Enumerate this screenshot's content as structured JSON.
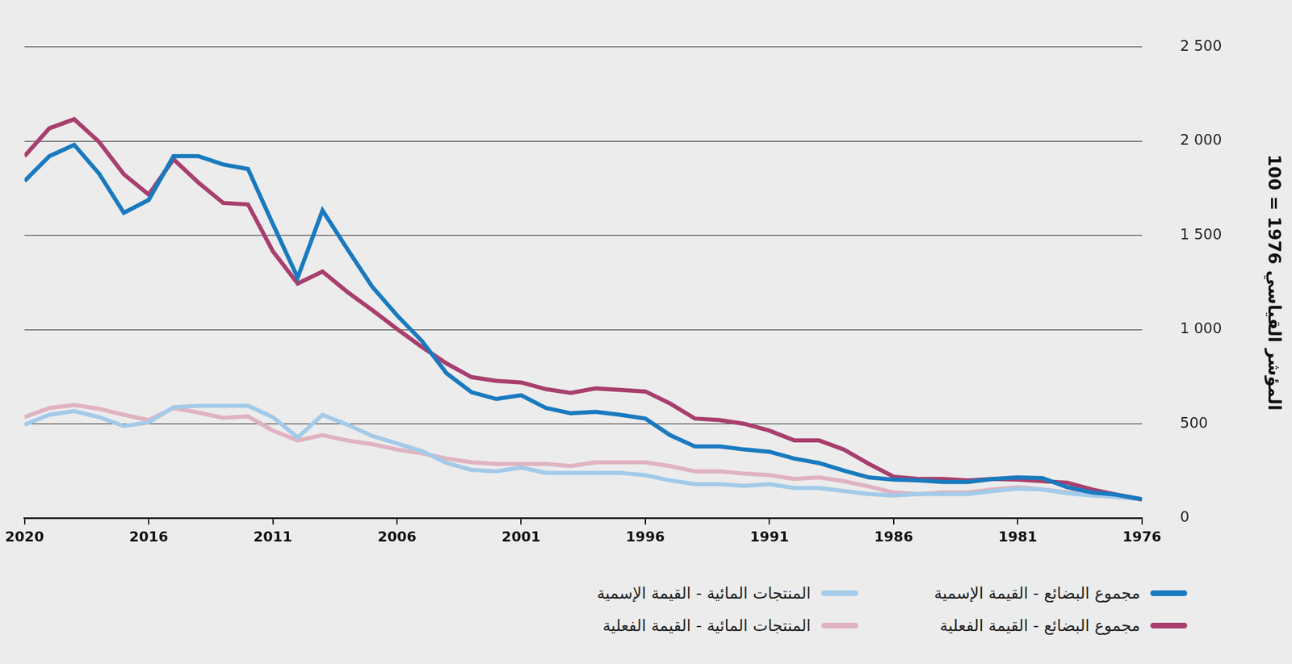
{
  "chart_data": {
    "type": "line",
    "y_label": "المؤشر القياسي 1976 = 100",
    "categories": [
      "2020",
      null,
      null,
      null,
      null,
      "2016",
      null,
      null,
      null,
      null,
      "2011",
      null,
      null,
      null,
      null,
      "2006",
      null,
      null,
      null,
      null,
      "2001",
      null,
      null,
      null,
      null,
      "1996",
      null,
      null,
      null,
      null,
      "1991",
      null,
      null,
      null,
      null,
      "1986",
      null,
      null,
      null,
      null,
      "1981",
      null,
      null,
      null,
      null,
      "1976"
    ],
    "series": [
      {
        "name": "مجموع البضائع - القيمة الإسمية",
        "color": "#1a7abf",
        "values": [
          1788,
          1920,
          1980,
          1828,
          1620,
          1688,
          1920,
          1920,
          1876,
          1852,
          1560,
          1276,
          1632,
          1428,
          1228,
          1076,
          940,
          768,
          668,
          632,
          652,
          584,
          556,
          564,
          548,
          528,
          440,
          380,
          380,
          364,
          352,
          316,
          292,
          252,
          216,
          204,
          200,
          192,
          192,
          208,
          216,
          212,
          164,
          136,
          124,
          100
        ]
      },
      {
        "name": "مجموع البضائع - القيمة الفعلية",
        "color": "#a83f6e",
        "values": [
          1920,
          2068,
          2116,
          1996,
          1824,
          1716,
          1904,
          1780,
          1672,
          1664,
          1416,
          1244,
          1308,
          1200,
          1104,
          1004,
          908,
          820,
          748,
          728,
          720,
          684,
          664,
          688,
          680,
          672,
          608,
          528,
          520,
          500,
          464,
          412,
          412,
          364,
          288,
          220,
          208,
          208,
          200,
          208,
          204,
          196,
          188,
          152,
          124,
          100
        ]
      },
      {
        "name": "المنتجات المائية - القيمة الإسمية",
        "color": "#a3cbe9",
        "values": [
          496,
          548,
          568,
          536,
          488,
          508,
          588,
          596,
          596,
          596,
          536,
          428,
          548,
          496,
          436,
          396,
          356,
          292,
          256,
          248,
          268,
          240,
          240,
          240,
          240,
          228,
          200,
          180,
          180,
          172,
          180,
          160,
          160,
          144,
          128,
          120,
          128,
          128,
          128,
          144,
          156,
          152,
          132,
          120,
          112,
          100
        ]
      },
      {
        "name": "المنتجات المائية - القيمة الفعلية",
        "color": "#e0b3c2",
        "values": [
          536,
          584,
          600,
          580,
          548,
          520,
          584,
          560,
          532,
          540,
          464,
          412,
          440,
          412,
          392,
          364,
          344,
          316,
          296,
          288,
          288,
          288,
          276,
          296,
          296,
          296,
          276,
          248,
          248,
          236,
          228,
          208,
          216,
          196,
          168,
          136,
          128,
          136,
          136,
          152,
          164,
          152,
          136,
          128,
          112,
          100
        ]
      }
    ],
    "ylim": [
      0,
      2500
    ],
    "yticks": [
      0,
      500,
      {
        "value": 1000,
        "label": "1 000"
      },
      {
        "value": 1500,
        "label": "1 500"
      },
      {
        "value": 2000,
        "label": "2 000"
      },
      {
        "value": 2500,
        "label": "2 500"
      }
    ],
    "grid": true,
    "legend": "bottom"
  }
}
